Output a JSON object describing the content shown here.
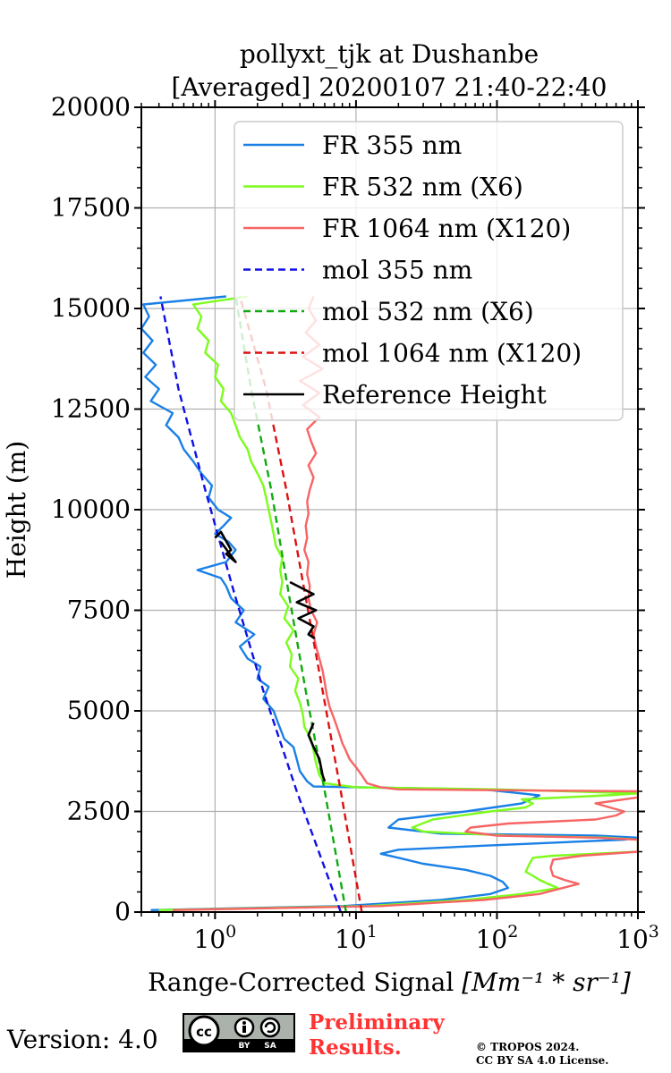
{
  "chart_data": {
    "type": "line",
    "title_line1": "pollyxt_tjk at Dushanbe",
    "title_line2": "[Averaged] 20200107 21:40-22:40",
    "xlabel": "Range-Corrected Signal",
    "xlabel_unit": "[Mm⁻¹ * sr⁻¹]",
    "ylabel": "Height (m)",
    "xscale": "log",
    "xlim": [
      0.3,
      1000
    ],
    "ylim": [
      0,
      20000
    ],
    "grid": true,
    "legend_position": "upper-right",
    "y_ticks": [
      0,
      2500,
      5000,
      7500,
      10000,
      12500,
      15000,
      17500,
      20000
    ],
    "x_ticks": [
      {
        "value": 1,
        "base": "10",
        "exp": "0"
      },
      {
        "value": 10,
        "base": "10",
        "exp": "1"
      },
      {
        "value": 100,
        "base": "10",
        "exp": "2"
      },
      {
        "value": 1000,
        "base": "10",
        "exp": "3"
      }
    ],
    "series": [
      {
        "name": "FR 355 nm",
        "color": "#1a80e6",
        "style": "solid",
        "points": [
          [
            0.35,
            50
          ],
          [
            8,
            150
          ],
          [
            40,
            300
          ],
          [
            90,
            450
          ],
          [
            120,
            600
          ],
          [
            110,
            750
          ],
          [
            90,
            900
          ],
          [
            60,
            1050
          ],
          [
            30,
            1200
          ],
          [
            20,
            1350
          ],
          [
            15,
            1450
          ],
          [
            20,
            1550
          ],
          [
            80,
            1650
          ],
          [
            800,
            1800
          ],
          [
            1000,
            1850
          ],
          [
            500,
            1900
          ],
          [
            40,
            1950
          ],
          [
            17,
            2100
          ],
          [
            20,
            2300
          ],
          [
            60,
            2500
          ],
          [
            150,
            2700
          ],
          [
            200,
            2900
          ],
          [
            80,
            3050
          ],
          [
            5,
            3120
          ],
          [
            4.5,
            3250
          ],
          [
            4,
            3500
          ],
          [
            3.8,
            3800
          ],
          [
            3.6,
            4100
          ],
          [
            3.1,
            4300
          ],
          [
            2.8,
            4700
          ],
          [
            2.6,
            5000
          ],
          [
            2.2,
            5300
          ],
          [
            2.4,
            5600
          ],
          [
            2.0,
            5800
          ],
          [
            2.1,
            6100
          ],
          [
            1.7,
            6300
          ],
          [
            1.5,
            6600
          ],
          [
            1.9,
            6900
          ],
          [
            1.4,
            7200
          ],
          [
            1.6,
            7500
          ],
          [
            1.3,
            7800
          ],
          [
            1.2,
            8100
          ],
          [
            1.1,
            8300
          ],
          [
            0.75,
            8500
          ],
          [
            1.2,
            8700
          ],
          [
            1.4,
            9000
          ],
          [
            1.25,
            9200
          ],
          [
            1.0,
            9400
          ],
          [
            1.15,
            9600
          ],
          [
            1.3,
            9800
          ],
          [
            1.05,
            10000
          ],
          [
            0.9,
            10300
          ],
          [
            0.95,
            10600
          ],
          [
            0.8,
            10900
          ],
          [
            0.7,
            11200
          ],
          [
            0.6,
            11500
          ],
          [
            0.55,
            11800
          ],
          [
            0.45,
            12100
          ],
          [
            0.5,
            12400
          ],
          [
            0.35,
            12700
          ],
          [
            0.4,
            13000
          ],
          [
            0.32,
            13300
          ],
          [
            0.38,
            13600
          ],
          [
            0.31,
            13900
          ],
          [
            0.36,
            14200
          ],
          [
            0.3,
            14500
          ],
          [
            0.34,
            14800
          ],
          [
            0.31,
            15100
          ],
          [
            1.2,
            15300
          ]
        ]
      },
      {
        "name": "FR 532 nm (X6)",
        "color": "#7cfc1c",
        "style": "solid",
        "points": [
          [
            0.4,
            50
          ],
          [
            12,
            150
          ],
          [
            60,
            300
          ],
          [
            150,
            450
          ],
          [
            270,
            600
          ],
          [
            230,
            700
          ],
          [
            200,
            800
          ],
          [
            180,
            900
          ],
          [
            160,
            1000
          ],
          [
            170,
            1200
          ],
          [
            180,
            1350
          ],
          [
            250,
            1400
          ],
          [
            1000,
            1500
          ],
          [
            1000,
            1800
          ],
          [
            600,
            1850
          ],
          [
            120,
            1900
          ],
          [
            30,
            2000
          ],
          [
            25,
            2100
          ],
          [
            35,
            2300
          ],
          [
            90,
            2500
          ],
          [
            160,
            2600
          ],
          [
            180,
            2700
          ],
          [
            150,
            2800
          ],
          [
            600,
            2900
          ],
          [
            1000,
            2950
          ],
          [
            100,
            3050
          ],
          [
            10,
            3100
          ],
          [
            6,
            3200
          ],
          [
            5.5,
            3400
          ],
          [
            5.2,
            3700
          ],
          [
            5,
            4000
          ],
          [
            4.8,
            4300
          ],
          [
            4.3,
            4600
          ],
          [
            4.2,
            4900
          ],
          [
            4.0,
            5200
          ],
          [
            3.7,
            5500
          ],
          [
            3.9,
            5800
          ],
          [
            3.4,
            6100
          ],
          [
            3.5,
            6400
          ],
          [
            3.2,
            6700
          ],
          [
            3.6,
            7000
          ],
          [
            3.1,
            7300
          ],
          [
            3.3,
            7600
          ],
          [
            2.9,
            7900
          ],
          [
            3.0,
            8200
          ],
          [
            2.9,
            8500
          ],
          [
            3.0,
            8800
          ],
          [
            2.7,
            9100
          ],
          [
            2.6,
            9400
          ],
          [
            2.5,
            9700
          ],
          [
            2.4,
            10000
          ],
          [
            2.3,
            10300
          ],
          [
            2.2,
            10600
          ],
          [
            2.0,
            10900
          ],
          [
            1.8,
            11200
          ],
          [
            1.7,
            11500
          ],
          [
            1.5,
            11800
          ],
          [
            1.4,
            12100
          ],
          [
            1.3,
            12400
          ],
          [
            1.1,
            12700
          ],
          [
            1.15,
            13000
          ],
          [
            1.0,
            13300
          ],
          [
            1.05,
            13600
          ],
          [
            0.85,
            13900
          ],
          [
            0.9,
            14200
          ],
          [
            0.75,
            14500
          ],
          [
            0.8,
            14800
          ],
          [
            0.7,
            15100
          ],
          [
            1.7,
            15300
          ]
        ]
      },
      {
        "name": "FR 1064 nm (X120)",
        "color": "#f86464",
        "style": "solid",
        "points": [
          [
            0.5,
            50
          ],
          [
            15,
            150
          ],
          [
            80,
            300
          ],
          [
            200,
            450
          ],
          [
            380,
            700
          ],
          [
            300,
            800
          ],
          [
            250,
            900
          ],
          [
            240,
            1100
          ],
          [
            250,
            1300
          ],
          [
            400,
            1400
          ],
          [
            1000,
            1500
          ],
          [
            1000,
            1800
          ],
          [
            500,
            1850
          ],
          [
            100,
            1900
          ],
          [
            60,
            2000
          ],
          [
            65,
            2100
          ],
          [
            120,
            2200
          ],
          [
            500,
            2300
          ],
          [
            700,
            2400
          ],
          [
            800,
            2500
          ],
          [
            500,
            2700
          ],
          [
            1000,
            2850
          ],
          [
            1000,
            3000
          ],
          [
            20,
            3050
          ],
          [
            15,
            3100
          ],
          [
            12,
            3200
          ],
          [
            11,
            3400
          ],
          [
            10,
            3600
          ],
          [
            9,
            3800
          ],
          [
            8.5,
            4000
          ],
          [
            8,
            4200
          ],
          [
            7.5,
            4500
          ],
          [
            7,
            4800
          ],
          [
            6.5,
            5100
          ],
          [
            6.2,
            5400
          ],
          [
            6,
            5700
          ],
          [
            5.8,
            6000
          ],
          [
            5.5,
            6300
          ],
          [
            5.2,
            6600
          ],
          [
            5,
            6900
          ],
          [
            5.3,
            7200
          ],
          [
            4.8,
            7500
          ],
          [
            4.6,
            7800
          ],
          [
            4.7,
            8100
          ],
          [
            4.5,
            8400
          ],
          [
            4.6,
            8700
          ],
          [
            4.3,
            9000
          ],
          [
            4.5,
            9300
          ],
          [
            4.4,
            9600
          ],
          [
            4.6,
            9900
          ],
          [
            4.5,
            10200
          ],
          [
            4.7,
            10500
          ],
          [
            5,
            10800
          ],
          [
            4.6,
            11100
          ],
          [
            5.2,
            11400
          ],
          [
            4.8,
            11700
          ],
          [
            4.5,
            12000
          ],
          [
            5.5,
            12300
          ],
          [
            4.2,
            12600
          ],
          [
            5.5,
            12900
          ],
          [
            4.0,
            13200
          ],
          [
            5.8,
            13500
          ],
          [
            4.2,
            13800
          ],
          [
            5.5,
            14100
          ],
          [
            4.4,
            14400
          ],
          [
            5.2,
            14700
          ],
          [
            4.6,
            15000
          ],
          [
            5.0,
            15300
          ]
        ]
      },
      {
        "name": "mol 355 nm",
        "color": "#1010e6",
        "style": "dashed",
        "points": [
          [
            7.8,
            0
          ],
          [
            3.8,
            3000
          ],
          [
            2.2,
            5500
          ],
          [
            1.35,
            8000
          ],
          [
            0.85,
            10500
          ],
          [
            0.55,
            13000
          ],
          [
            0.41,
            15300
          ]
        ]
      },
      {
        "name": "mol 532 nm (X6)",
        "color": "#10aa10",
        "style": "dashed",
        "points": [
          [
            8.5,
            0
          ],
          [
            6.0,
            3000
          ],
          [
            4.4,
            5500
          ],
          [
            3.3,
            8000
          ],
          [
            2.5,
            10500
          ],
          [
            1.8,
            13000
          ],
          [
            1.4,
            15300
          ]
        ]
      },
      {
        "name": "mol 1064 nm (X120)",
        "color": "#dd1010",
        "style": "dashed",
        "points": [
          [
            11,
            0
          ],
          [
            7.8,
            3000
          ],
          [
            5.8,
            5500
          ],
          [
            4.3,
            8000
          ],
          [
            3.2,
            10500
          ],
          [
            2.3,
            13000
          ],
          [
            1.5,
            15300
          ]
        ]
      },
      {
        "name": "Reference Height",
        "color": "#000000",
        "style": "solid",
        "points": [
          [
            1.0,
            9300
          ],
          [
            1.1,
            9450
          ],
          [
            1.3,
            9000
          ],
          [
            1.2,
            8900
          ],
          [
            1.4,
            8700
          ],
          [
            1.1,
            9200
          ]
        ],
        "points_b": [
          [
            3.4,
            8200
          ],
          [
            5.0,
            7900
          ],
          [
            3.8,
            7700
          ],
          [
            5.2,
            7500
          ],
          [
            3.9,
            7300
          ],
          [
            5.0,
            7100
          ],
          [
            4.6,
            6900
          ],
          [
            5.1,
            6800
          ]
        ],
        "points_c": [
          [
            5.0,
            4700
          ],
          [
            4.6,
            4400
          ],
          [
            5.0,
            4100
          ],
          [
            5.5,
            3800
          ],
          [
            5.8,
            3400
          ],
          [
            6.0,
            3250
          ]
        ]
      }
    ]
  },
  "footer": {
    "version_label": "Version: 4.0",
    "cc_icon": "cc-by-sa-badge",
    "cc_by": "BY",
    "cc_sa": "SA",
    "preliminary_line1": "Preliminary",
    "preliminary_line2": "Results.",
    "copyright_line1": "© TROPOS 2024.",
    "copyright_line2": "CC BY SA 4.0 License."
  }
}
